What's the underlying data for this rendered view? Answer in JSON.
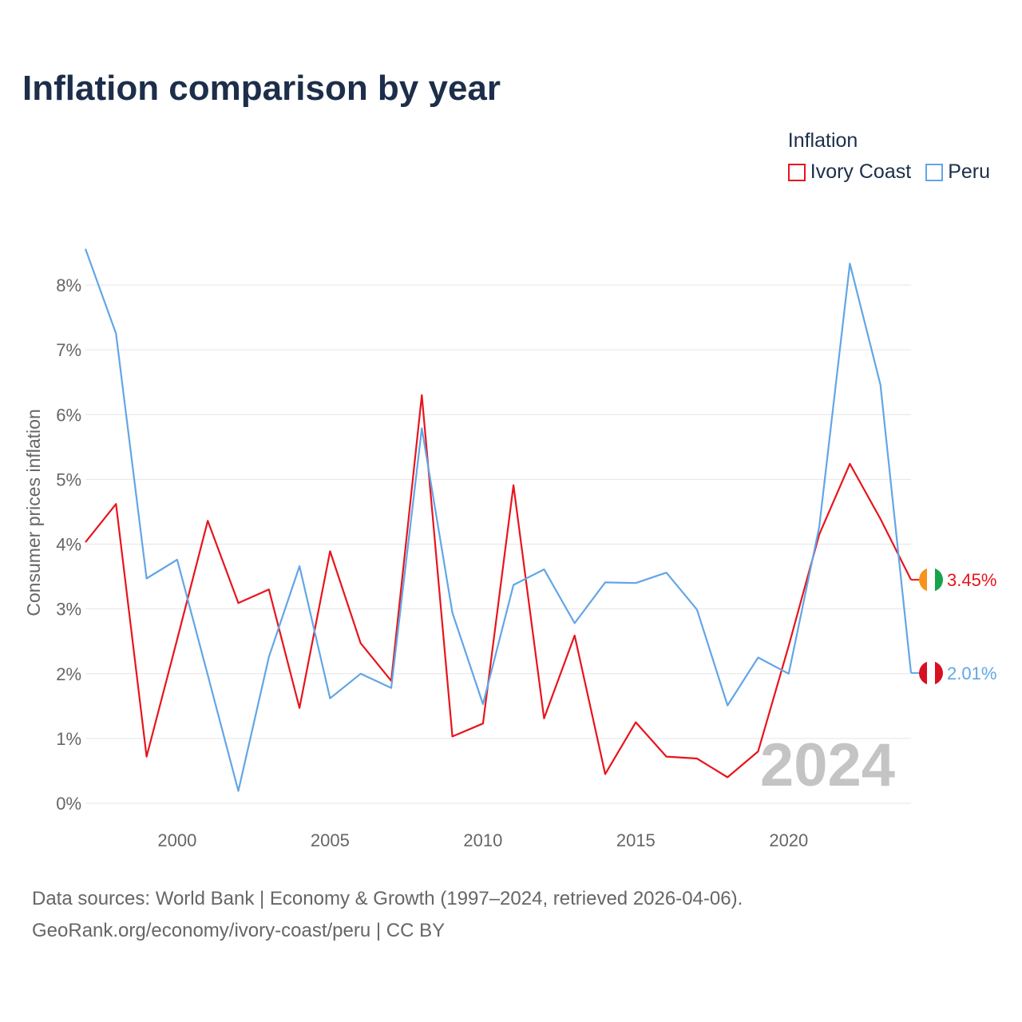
{
  "title": "Inflation comparison by year",
  "legend": {
    "title": "Inflation",
    "items": [
      {
        "label": "Ivory Coast",
        "color": "#e8141c"
      },
      {
        "label": "Peru",
        "color": "#62a6e6"
      }
    ]
  },
  "footer": {
    "line1": "Data sources: World Bank | Economy & Growth (1997–2024, retrieved 2026-04-06).",
    "line2": "GeoRank.org/economy/ivory-coast/peru | CC BY"
  },
  "chart_data": {
    "type": "line",
    "title": "Inflation comparison by year",
    "xlabel": "",
    "ylabel": "Consumer prices inflation",
    "xlim": [
      1997,
      2024
    ],
    "ylim": [
      0,
      8.5
    ],
    "grid": true,
    "legend_position": "top-right",
    "watermark": "2024",
    "x_ticks": [
      2000,
      2005,
      2010,
      2015,
      2020
    ],
    "y_ticks": [
      0,
      1,
      2,
      3,
      4,
      5,
      6,
      7,
      8
    ],
    "y_tick_labels": [
      "0%",
      "1%",
      "2%",
      "3%",
      "4%",
      "5%",
      "6%",
      "7%",
      "8%"
    ],
    "x": [
      1997,
      1998,
      1999,
      2000,
      2001,
      2002,
      2003,
      2004,
      2005,
      2006,
      2007,
      2008,
      2009,
      2010,
      2011,
      2012,
      2013,
      2014,
      2015,
      2016,
      2017,
      2018,
      2019,
      2020,
      2021,
      2022,
      2023,
      2024
    ],
    "series": [
      {
        "name": "Ivory Coast",
        "color": "#e8141c",
        "values": [
          4.03,
          4.62,
          0.72,
          2.53,
          4.36,
          3.09,
          3.3,
          1.47,
          3.89,
          2.47,
          1.89,
          6.3,
          1.03,
          1.23,
          4.91,
          1.31,
          2.59,
          0.45,
          1.25,
          0.72,
          0.69,
          0.4,
          0.8,
          2.43,
          4.15,
          5.24,
          4.39,
          3.45
        ],
        "end_label": "3.45%",
        "flag": "ivory-coast-flag-icon"
      },
      {
        "name": "Peru",
        "color": "#62a6e6",
        "values": [
          8.56,
          7.25,
          3.47,
          3.76,
          1.98,
          0.19,
          2.26,
          3.66,
          1.62,
          2.0,
          1.78,
          5.79,
          2.94,
          1.53,
          3.37,
          3.61,
          2.78,
          3.41,
          3.4,
          3.56,
          2.99,
          1.51,
          2.25,
          2.0,
          4.27,
          8.33,
          6.46,
          2.01
        ],
        "end_label": "2.01%",
        "flag": "peru-flag-icon"
      }
    ]
  }
}
